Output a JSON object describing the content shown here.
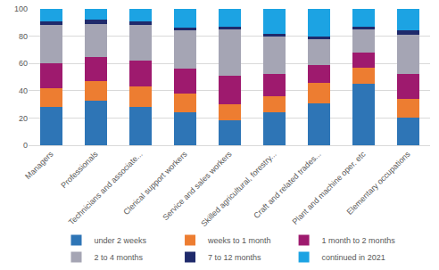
{
  "chart_data": {
    "type": "bar",
    "stacked": true,
    "categories": [
      "Managers",
      "Professionals",
      "Technicians and associate...",
      "Clerical support workers",
      "Service and sales workers",
      "Skilled agricultural, forestry...",
      "Craft and related trades...",
      "Plant and machine oper. etc",
      "Elementary occupations"
    ],
    "series": [
      {
        "name": "under 2 weeks",
        "color": "#2E75B6",
        "values": [
          28,
          33,
          28,
          24,
          18,
          24,
          31,
          45,
          20
        ]
      },
      {
        "name": "weeks to 1 month",
        "color": "#ED7D31",
        "values": [
          14,
          14,
          15,
          14,
          12,
          12,
          15,
          12,
          14
        ]
      },
      {
        "name": "1 month to 2 months",
        "color": "#9E1A6E",
        "values": [
          18,
          18,
          19,
          18,
          21,
          16,
          13,
          11,
          18
        ]
      },
      {
        "name": "2 to 4 months",
        "color": "#A5A5B4",
        "values": [
          28,
          24,
          26,
          28,
          34,
          28,
          19,
          17,
          29
        ]
      },
      {
        "name": "7 to 12 months",
        "color": "#1F2A6B",
        "values": [
          3,
          3,
          3,
          2,
          2,
          2,
          2,
          2,
          3
        ]
      },
      {
        "name": "continued in 2021",
        "color": "#1CA3E3",
        "values": [
          9,
          8,
          9,
          14,
          13,
          18,
          20,
          13,
          16
        ]
      }
    ],
    "ylim": [
      0,
      100
    ],
    "yticks": [
      0,
      20,
      40,
      60,
      80,
      100
    ],
    "grid": true,
    "legend": "bottom"
  }
}
